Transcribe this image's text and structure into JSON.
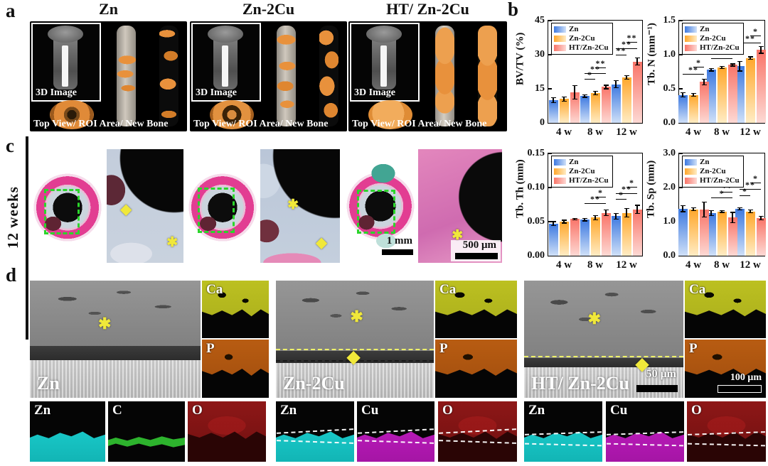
{
  "panels": {
    "a": {
      "label": "a",
      "groups": [
        {
          "title": "Zn",
          "inset_label": "3D Image",
          "caption": "Top View/ ROI Area/ New Bone"
        },
        {
          "title": "Zn-2Cu",
          "inset_label": "3D Image",
          "caption": "Top View/ ROI Area/ New Bone"
        },
        {
          "title": "HT/ Zn-2Cu",
          "inset_label": "3D Image",
          "caption": "Top View/ ROI Area/ New Bone"
        }
      ]
    },
    "b": {
      "label": "b"
    },
    "c": {
      "label": "c",
      "row_label": "12 weeks",
      "scalebar_low_mag": "1 mm",
      "scalebar_high_mag": "500 μm"
    },
    "d": {
      "label": "d",
      "groups": [
        {
          "sem_label": "Zn",
          "maps_top": [
            "Ca",
            "P"
          ],
          "maps_bottom": [
            "Zn",
            "C",
            "O"
          ]
        },
        {
          "sem_label": "Zn-2Cu",
          "maps_top": [
            "Ca",
            "P"
          ],
          "maps_bottom": [
            "Zn",
            "Cu",
            "O"
          ]
        },
        {
          "sem_label": "HT/ Zn-2Cu",
          "maps_top": [
            "Ca",
            "P"
          ],
          "maps_bottom": [
            "Zn",
            "Cu",
            "O"
          ],
          "sem_scalebar": "50 μm",
          "map_scalebar": "100 μm"
        }
      ]
    }
  },
  "markers": {
    "asterisk": "✱",
    "diamond": "◆"
  },
  "colors": {
    "series": [
      [
        "#3d79e0",
        "#cfe0f8"
      ],
      [
        "#ffa72b",
        "#ffecc4"
      ],
      [
        "#f97468",
        "#fdd9d4"
      ]
    ],
    "legend_swatches": [
      "#3d79e0",
      "#ffa72b",
      "#f97468"
    ],
    "roi_green": "#2bd52b",
    "marker_yellow": "#f0e83a",
    "new_bone_orange": "#e8913c"
  },
  "chart_data": [
    {
      "type": "bar",
      "ylabel": "BV/TV (%)",
      "xlabel": "",
      "categories": [
        "4 w",
        "8 w",
        "12 w"
      ],
      "legend": [
        "Zn",
        "Zn-2Cu",
        "HT/Zn-2Cu"
      ],
      "ylim": [
        0,
        45
      ],
      "yticks": [
        {
          "v": 0,
          "label": "0"
        },
        {
          "v": 15,
          "label": "15"
        },
        {
          "v": 30,
          "label": "30"
        },
        {
          "v": 45,
          "label": "45"
        }
      ],
      "series": [
        {
          "name": "Zn",
          "values": [
            10.0,
            11.8,
            17.0
          ],
          "errors": [
            1.0,
            0.5,
            1.5
          ]
        },
        {
          "name": "Zn-2Cu",
          "values": [
            10.5,
            13.2,
            20.0
          ],
          "errors": [
            1.0,
            0.8,
            0.7
          ]
        },
        {
          "name": "HT/Zn-2Cu",
          "values": [
            13.5,
            15.8,
            27.0
          ],
          "errors": [
            3.0,
            0.8,
            1.5
          ]
        }
      ],
      "annotations": [
        {
          "g": 1,
          "a": 0,
          "b": 1,
          "y": 19.5,
          "label": "*"
        },
        {
          "g": 1,
          "a": 0,
          "b": 2,
          "y": 22.0,
          "label": "**"
        },
        {
          "g": 1,
          "a": 1,
          "b": 2,
          "y": 24.5,
          "label": "**"
        },
        {
          "g": 2,
          "a": 0,
          "b": 1,
          "y": 30.0,
          "label": "**"
        },
        {
          "g": 2,
          "a": 0,
          "b": 2,
          "y": 32.8,
          "label": "**"
        },
        {
          "g": 2,
          "a": 1,
          "b": 2,
          "y": 35.6,
          "label": "**"
        }
      ]
    },
    {
      "type": "bar",
      "ylabel": "Tb. N (mm⁻¹)",
      "xlabel": "",
      "categories": [
        "4 w",
        "8 w",
        "12 w"
      ],
      "legend": [
        "Zn",
        "Zn-2Cu",
        "HT/Zn-2Cu"
      ],
      "ylim": [
        0,
        1.5
      ],
      "yticks": [
        {
          "v": 0,
          "label": "0.0"
        },
        {
          "v": 0.5,
          "label": "0.5"
        },
        {
          "v": 1.0,
          "label": "1.0"
        },
        {
          "v": 1.5,
          "label": "1.5"
        }
      ],
      "series": [
        {
          "name": "Zn",
          "values": [
            0.41,
            0.78,
            0.83
          ],
          "errors": [
            0.03,
            0.02,
            0.07
          ]
        },
        {
          "name": "Zn-2Cu",
          "values": [
            0.41,
            0.81,
            0.95
          ],
          "errors": [
            0.02,
            0.015,
            0.02
          ]
        },
        {
          "name": "HT/Zn-2Cu",
          "values": [
            0.6,
            0.85,
            1.07
          ],
          "errors": [
            0.04,
            0.015,
            0.05
          ]
        }
      ],
      "annotations": [
        {
          "g": 0,
          "a": 0,
          "b": 2,
          "y": 0.72,
          "label": "**"
        },
        {
          "g": 0,
          "a": 1,
          "b": 2,
          "y": 0.82,
          "label": "*"
        },
        {
          "g": 1,
          "a": 0,
          "b": 2,
          "y": 0.95,
          "label": "**"
        },
        {
          "g": 1,
          "a": 1,
          "b": 2,
          "y": 1.05,
          "label": "*"
        },
        {
          "g": 2,
          "a": 0,
          "b": 2,
          "y": 1.18,
          "label": "**"
        },
        {
          "g": 2,
          "a": 1,
          "b": 2,
          "y": 1.28,
          "label": "*"
        }
      ]
    },
    {
      "type": "bar",
      "ylabel": "Tb. Th (mm)",
      "xlabel": "",
      "categories": [
        "4 w",
        "8 w",
        "12 w"
      ],
      "legend": [
        "Zn",
        "Zn-2Cu",
        "HT/Zn-2Cu"
      ],
      "ylim": [
        0,
        0.15
      ],
      "yticks": [
        {
          "v": 0,
          "label": "0.00"
        },
        {
          "v": 0.05,
          "label": "0.05"
        },
        {
          "v": 0.1,
          "label": "0.10"
        },
        {
          "v": 0.15,
          "label": "0.15"
        }
      ],
      "series": [
        {
          "name": "Zn",
          "values": [
            0.047,
            0.053,
            0.058
          ],
          "errors": [
            0.003,
            0.002,
            0.004
          ]
        },
        {
          "name": "Zn-2Cu",
          "values": [
            0.05,
            0.056,
            0.063
          ],
          "errors": [
            0.002,
            0.003,
            0.006
          ]
        },
        {
          "name": "HT/Zn-2Cu",
          "values": [
            0.054,
            0.063,
            0.068
          ],
          "errors": [
            0.001,
            0.004,
            0.006
          ]
        }
      ],
      "annotations": [
        {
          "g": 1,
          "a": 0,
          "b": 2,
          "y": 0.077,
          "label": "**"
        },
        {
          "g": 1,
          "a": 1,
          "b": 2,
          "y": 0.086,
          "label": "*"
        },
        {
          "g": 2,
          "a": 0,
          "b": 1,
          "y": 0.083,
          "label": "*"
        },
        {
          "g": 2,
          "a": 0,
          "b": 2,
          "y": 0.092,
          "label": "**"
        },
        {
          "g": 2,
          "a": 1,
          "b": 2,
          "y": 0.101,
          "label": "*"
        }
      ]
    },
    {
      "type": "bar",
      "ylabel": "Tb. Sp (mm)",
      "xlabel": "",
      "categories": [
        "4 w",
        "8 w",
        "12 w"
      ],
      "legend": [
        "Zn",
        "Zn-2Cu",
        "HT/Zn-2Cu"
      ],
      "ylim": [
        0,
        3.0
      ],
      "yticks": [
        {
          "v": 0,
          "label": "0.0"
        },
        {
          "v": 1.0,
          "label": "1.0"
        },
        {
          "v": 2.0,
          "label": "2.0"
        },
        {
          "v": 3.0,
          "label": "3.0"
        }
      ],
      "series": [
        {
          "name": "Zn",
          "values": [
            1.38,
            1.25,
            1.38
          ],
          "errors": [
            0.09,
            0.07,
            0.03
          ]
        },
        {
          "name": "Zn-2Cu",
          "values": [
            1.36,
            1.3,
            1.3
          ],
          "errors": [
            0.04,
            0.03,
            0.04
          ]
        },
        {
          "name": "HT/Zn-2Cu",
          "values": [
            1.35,
            1.12,
            1.1
          ],
          "errors": [
            0.22,
            0.15,
            0.05
          ]
        }
      ],
      "annotations": [
        {
          "g": 1,
          "a": 0,
          "b": 2,
          "y": 1.7,
          "label": "*"
        },
        {
          "g": 1,
          "a": 1,
          "b": 2,
          "y": 1.88,
          "label": "**"
        },
        {
          "g": 2,
          "a": 0,
          "b": 1,
          "y": 1.78,
          "label": "*"
        },
        {
          "g": 2,
          "a": 0,
          "b": 2,
          "y": 1.96,
          "label": "**"
        },
        {
          "g": 2,
          "a": 1,
          "b": 2,
          "y": 2.14,
          "label": "*"
        }
      ]
    }
  ]
}
